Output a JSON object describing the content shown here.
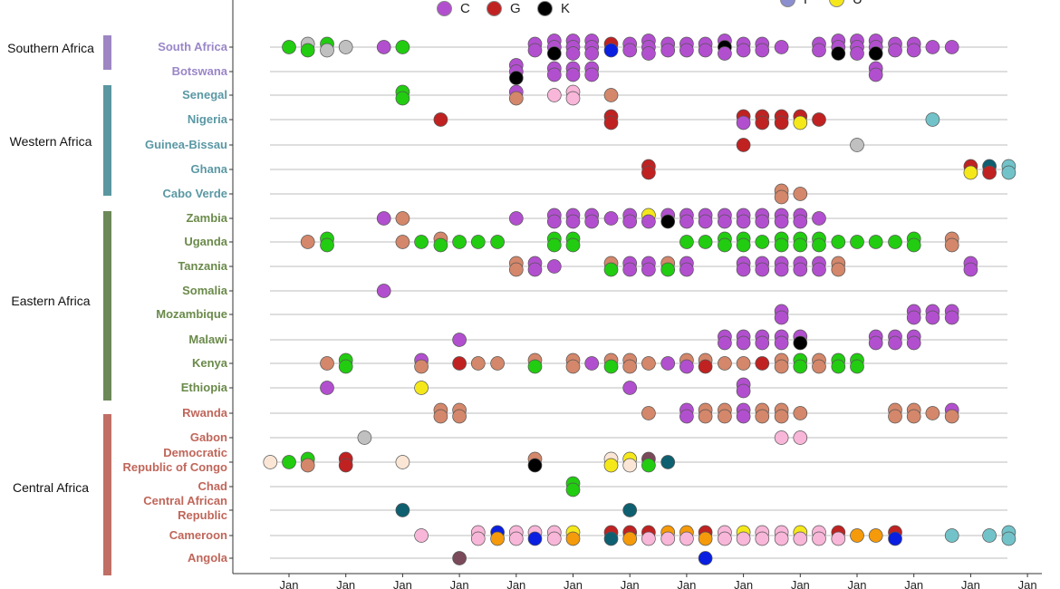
{
  "legend": [
    {
      "code": "C",
      "label": "C",
      "color": "#b24fcf"
    },
    {
      "code": "G",
      "label": "G",
      "color": "#c02222"
    },
    {
      "code": "K",
      "label": "K",
      "color": "#000000"
    },
    {
      "code": "P",
      "label": "P",
      "color": "#8b8fd0"
    },
    {
      "code": "U",
      "label": "U",
      "color": "#f5e81a"
    }
  ],
  "colors": {
    "C": "#b24fcf",
    "G": "#c02222",
    "K": "#000000",
    "P": "#8b8fd0",
    "U": "#f5e81a",
    "g": "#22cc11",
    "n": "#c0c0c0",
    "s": "#d4876a",
    "p": "#f8b6d8",
    "t": "#72c3c9",
    "d": "#0e6070",
    "b": "#0a1fe0",
    "o": "#f59a0a",
    "m": "#7a4a5a",
    "w": "#fbe6d6"
  },
  "groups": [
    {
      "label": "Southern Africa",
      "color": "#9d86c2"
    },
    {
      "label": "Western Africa",
      "color": "#5a97a0"
    },
    {
      "label": "Eastern Africa",
      "color": "#6c8858"
    },
    {
      "label": "Central Africa",
      "color": "#c06f66"
    }
  ],
  "chart_data": {
    "type": "scatter",
    "x_ticks": [
      "Jan",
      "Jan",
      "Jan",
      "Jan",
      "Jan",
      "Jan",
      "Jan",
      "Jan",
      "Jan",
      "Jan",
      "Jan",
      "Jan",
      "Jan",
      "Jan"
    ],
    "rows": [
      {
        "country": "South Africa",
        "group": 0,
        "points": [
          [
            0,
            "g"
          ],
          [
            0.33,
            "ng"
          ],
          [
            0.67,
            "gn"
          ],
          [
            1,
            "n"
          ],
          [
            1.67,
            "C"
          ],
          [
            2,
            "g"
          ],
          [
            4.33,
            "CC"
          ],
          [
            4.67,
            "CCK"
          ],
          [
            5,
            "CCC"
          ],
          [
            5.33,
            "CCC"
          ],
          [
            5.67,
            "Gb"
          ],
          [
            6,
            "CC"
          ],
          [
            6.33,
            "CCC"
          ],
          [
            6.67,
            "CC"
          ],
          [
            7,
            "CC"
          ],
          [
            7.33,
            "CC"
          ],
          [
            7.67,
            "CKC"
          ],
          [
            8,
            "CC"
          ],
          [
            8.33,
            "CC"
          ],
          [
            8.67,
            "C"
          ],
          [
            9.33,
            "CC"
          ],
          [
            9.67,
            "CCK"
          ],
          [
            10,
            "CCC"
          ],
          [
            10.33,
            "CCK"
          ],
          [
            10.67,
            "CC"
          ],
          [
            11,
            "CC"
          ],
          [
            11.33,
            "C"
          ],
          [
            11.67,
            "C"
          ]
        ]
      },
      {
        "country": "Botswana",
        "group": 0,
        "points": [
          [
            4,
            "CCK"
          ],
          [
            4.67,
            "CC"
          ],
          [
            5,
            "CC"
          ],
          [
            5.33,
            "CC"
          ],
          [
            10.33,
            "CC"
          ]
        ]
      },
      {
        "country": "Senegal",
        "group": 1,
        "points": [
          [
            2,
            "gg"
          ],
          [
            4,
            "Cs"
          ],
          [
            4.67,
            "p"
          ],
          [
            5,
            "pp"
          ],
          [
            5.67,
            "s"
          ]
        ]
      },
      {
        "country": "Nigeria",
        "group": 1,
        "points": [
          [
            2.67,
            "G"
          ],
          [
            5.67,
            "GG"
          ],
          [
            8,
            "GC"
          ],
          [
            8.33,
            "GG"
          ],
          [
            8.67,
            "GG"
          ],
          [
            9,
            "GU"
          ],
          [
            9.33,
            "G"
          ],
          [
            11.33,
            "t"
          ]
        ]
      },
      {
        "country": "Guinea-Bissau",
        "group": 1,
        "points": [
          [
            8,
            "G"
          ],
          [
            10,
            "n"
          ]
        ]
      },
      {
        "country": "Ghana",
        "group": 1,
        "points": [
          [
            6.33,
            "GG"
          ],
          [
            12,
            "GU"
          ],
          [
            12.33,
            "dG"
          ],
          [
            12.67,
            "tt"
          ]
        ]
      },
      {
        "country": "Cabo Verde",
        "group": 1,
        "points": [
          [
            8.67,
            "ss"
          ],
          [
            9,
            "s"
          ]
        ]
      },
      {
        "country": "Zambia",
        "group": 2,
        "points": [
          [
            1.67,
            "C"
          ],
          [
            2,
            "s"
          ],
          [
            4,
            "C"
          ],
          [
            4.67,
            "CC"
          ],
          [
            5,
            "CC"
          ],
          [
            5.33,
            "CC"
          ],
          [
            5.67,
            "C"
          ],
          [
            6,
            "CC"
          ],
          [
            6.33,
            "UC"
          ],
          [
            6.67,
            "CK"
          ],
          [
            7,
            "CC"
          ],
          [
            7.33,
            "CC"
          ],
          [
            7.67,
            "CC"
          ],
          [
            8,
            "CC"
          ],
          [
            8.33,
            "CC"
          ],
          [
            8.67,
            "CC"
          ],
          [
            9,
            "CC"
          ],
          [
            9.33,
            "C"
          ]
        ]
      },
      {
        "country": "Uganda",
        "group": 2,
        "points": [
          [
            0.33,
            "s"
          ],
          [
            0.67,
            "gg"
          ],
          [
            2,
            "s"
          ],
          [
            2.33,
            "g"
          ],
          [
            2.67,
            "sg"
          ],
          [
            3,
            "g"
          ],
          [
            3.33,
            "g"
          ],
          [
            3.67,
            "g"
          ],
          [
            4.67,
            "gg"
          ],
          [
            5,
            "gg"
          ],
          [
            7,
            "g"
          ],
          [
            7.33,
            "g"
          ],
          [
            7.67,
            "gg"
          ],
          [
            8,
            "gg"
          ],
          [
            8.33,
            "g"
          ],
          [
            8.67,
            "gg"
          ],
          [
            9,
            "gg"
          ],
          [
            9.33,
            "gg"
          ],
          [
            9.67,
            "g"
          ],
          [
            10,
            "g"
          ],
          [
            10.33,
            "g"
          ],
          [
            10.67,
            "g"
          ],
          [
            11,
            "gg"
          ],
          [
            11.67,
            "ss"
          ]
        ]
      },
      {
        "country": "Tanzania",
        "group": 2,
        "points": [
          [
            4,
            "ss"
          ],
          [
            4.33,
            "CC"
          ],
          [
            4.67,
            "C"
          ],
          [
            5.67,
            "sg"
          ],
          [
            6,
            "CC"
          ],
          [
            6.33,
            "CC"
          ],
          [
            6.67,
            "sg"
          ],
          [
            7,
            "CC"
          ],
          [
            8,
            "CC"
          ],
          [
            8.33,
            "CC"
          ],
          [
            8.67,
            "CC"
          ],
          [
            9,
            "CC"
          ],
          [
            9.33,
            "CC"
          ],
          [
            9.67,
            "ss"
          ],
          [
            12,
            "CC"
          ]
        ]
      },
      {
        "country": "Somalia",
        "group": 2,
        "points": [
          [
            1.67,
            "C"
          ]
        ]
      },
      {
        "country": "Mozambique",
        "group": 2,
        "points": [
          [
            8.67,
            "CC"
          ],
          [
            11,
            "CC"
          ],
          [
            11.33,
            "CC"
          ],
          [
            11.67,
            "CC"
          ]
        ]
      },
      {
        "country": "Malawi",
        "group": 2,
        "points": [
          [
            3,
            "C"
          ],
          [
            7.67,
            "CC"
          ],
          [
            8,
            "CC"
          ],
          [
            8.33,
            "CC"
          ],
          [
            8.67,
            "CC"
          ],
          [
            9,
            "CK"
          ],
          [
            10.33,
            "CC"
          ],
          [
            10.67,
            "CC"
          ],
          [
            11,
            "CC"
          ]
        ]
      },
      {
        "country": "Kenya",
        "group": 2,
        "points": [
          [
            0.67,
            "s"
          ],
          [
            1,
            "gg"
          ],
          [
            2.33,
            "Cs"
          ],
          [
            3,
            "G"
          ],
          [
            3.33,
            "s"
          ],
          [
            3.67,
            "s"
          ],
          [
            4.33,
            "sg"
          ],
          [
            5,
            "ss"
          ],
          [
            5.33,
            "C"
          ],
          [
            5.67,
            "sg"
          ],
          [
            6,
            "ss"
          ],
          [
            6.33,
            "s"
          ],
          [
            6.67,
            "C"
          ],
          [
            7,
            "sC"
          ],
          [
            7.33,
            "sG"
          ],
          [
            7.67,
            "s"
          ],
          [
            8,
            "s"
          ],
          [
            8.33,
            "G"
          ],
          [
            8.67,
            "ss"
          ],
          [
            9,
            "gg"
          ],
          [
            9.33,
            "ss"
          ],
          [
            9.67,
            "gg"
          ],
          [
            10,
            "gg"
          ]
        ]
      },
      {
        "country": "Ethiopia",
        "group": 2,
        "points": [
          [
            0.67,
            "C"
          ],
          [
            2.33,
            "U"
          ],
          [
            6,
            "C"
          ],
          [
            8,
            "CC"
          ]
        ]
      },
      {
        "country": "Rwanda",
        "group": 3,
        "points": [
          [
            2.67,
            "ss"
          ],
          [
            3,
            "ss"
          ],
          [
            6.33,
            "s"
          ],
          [
            7,
            "CC"
          ],
          [
            7.33,
            "ss"
          ],
          [
            7.67,
            "ss"
          ],
          [
            8,
            "CC"
          ],
          [
            8.33,
            "ss"
          ],
          [
            8.67,
            "ss"
          ],
          [
            9,
            "s"
          ],
          [
            10.67,
            "ss"
          ],
          [
            11,
            "ss"
          ],
          [
            11.33,
            "s"
          ],
          [
            11.67,
            "Cs"
          ]
        ]
      },
      {
        "country": "Gabon",
        "group": 3,
        "points": [
          [
            1.33,
            "n"
          ],
          [
            8.67,
            "p"
          ],
          [
            9,
            "p"
          ]
        ]
      },
      {
        "country": "Democratic\nRepublic of Congo",
        "group": 3,
        "points": [
          [
            -0.33,
            "w"
          ],
          [
            0,
            "g"
          ],
          [
            0.33,
            "gs"
          ],
          [
            1,
            "GG"
          ],
          [
            2,
            "w"
          ],
          [
            4.33,
            "sK"
          ],
          [
            5.67,
            "wU"
          ],
          [
            6,
            "Uw"
          ],
          [
            6.33,
            "mg"
          ],
          [
            6.67,
            "d"
          ]
        ]
      },
      {
        "country": "Chad",
        "group": 3,
        "points": [
          [
            5,
            "gg"
          ]
        ]
      },
      {
        "country": "Central African\nRepublic",
        "group": 3,
        "points": [
          [
            2,
            "d"
          ],
          [
            6,
            "d"
          ]
        ]
      },
      {
        "country": "Cameroon",
        "group": 3,
        "points": [
          [
            2.33,
            "p"
          ],
          [
            3.33,
            "pp"
          ],
          [
            3.67,
            "bo"
          ],
          [
            4,
            "pp"
          ],
          [
            4.33,
            "pb"
          ],
          [
            4.67,
            "pp"
          ],
          [
            5,
            "Uo"
          ],
          [
            5.67,
            "Gd"
          ],
          [
            6,
            "Go"
          ],
          [
            6.33,
            "Gp"
          ],
          [
            6.67,
            "op"
          ],
          [
            7,
            "op"
          ],
          [
            7.33,
            "Go"
          ],
          [
            7.67,
            "pp"
          ],
          [
            8,
            "Up"
          ],
          [
            8.33,
            "pp"
          ],
          [
            8.67,
            "pp"
          ],
          [
            9,
            "Up"
          ],
          [
            9.33,
            "pp"
          ],
          [
            9.67,
            "Gp"
          ],
          [
            10,
            "o"
          ],
          [
            10.33,
            "o"
          ],
          [
            10.67,
            "Gb"
          ],
          [
            11.67,
            "t"
          ],
          [
            12.33,
            "t"
          ],
          [
            12.67,
            "tt"
          ]
        ]
      },
      {
        "country": "Angola",
        "group": 3,
        "points": [
          [
            3,
            "m"
          ],
          [
            7.33,
            "b"
          ]
        ]
      }
    ]
  }
}
